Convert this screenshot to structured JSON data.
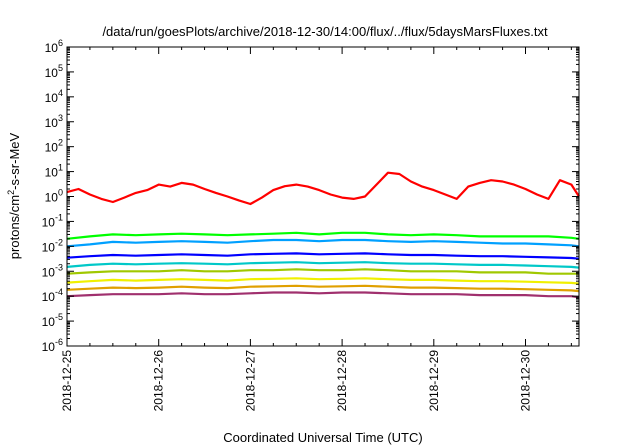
{
  "chart_data": {
    "type": "line",
    "title": "/data/run/goesPlots/archive/2018-12-30/14:00/flux/../flux/5daysMarsFluxes.txt",
    "xlabel": "Coordinated Universal Time (UTC)",
    "ylabel": "protons/cm2-s-sr-MeV",
    "ylabel_parts": {
      "base": "protons/cm",
      "sup": "2",
      "rest": "-s-sr-MeV"
    },
    "yscale": "log",
    "ylim": [
      1e-06,
      1000000.0
    ],
    "y_ticks": [
      {
        "base": "10",
        "exp": "-6"
      },
      {
        "base": "10",
        "exp": "-5"
      },
      {
        "base": "10",
        "exp": "-4"
      },
      {
        "base": "10",
        "exp": "-3"
      },
      {
        "base": "10",
        "exp": "-2"
      },
      {
        "base": "10",
        "exp": "-1"
      },
      {
        "base": "10",
        "exp": "0"
      },
      {
        "base": "10",
        "exp": "1"
      },
      {
        "base": "10",
        "exp": "2"
      },
      {
        "base": "10",
        "exp": "3"
      },
      {
        "base": "10",
        "exp": "4"
      },
      {
        "base": "10",
        "exp": "5"
      },
      {
        "base": "10",
        "exp": "6"
      }
    ],
    "xlim": [
      "2018-12-25T00:00",
      "2018-12-30T14:00"
    ],
    "x_ticks": [
      "2018-12-25",
      "2018-12-26",
      "2018-12-27",
      "2018-12-28",
      "2018-12-29",
      "2018-12-30"
    ],
    "grid": false,
    "legend": "none",
    "series": [
      {
        "color": "#ff0000",
        "x": [
          "2018-12-25T00:00",
          "2018-12-25T03:00",
          "2018-12-25T06:00",
          "2018-12-25T09:00",
          "2018-12-25T12:00",
          "2018-12-25T15:00",
          "2018-12-25T18:00",
          "2018-12-25T21:00",
          "2018-12-26T00:00",
          "2018-12-26T03:00",
          "2018-12-26T06:00",
          "2018-12-26T09:00",
          "2018-12-26T12:00",
          "2018-12-26T15:00",
          "2018-12-26T18:00",
          "2018-12-26T21:00",
          "2018-12-27T00:00",
          "2018-12-27T03:00",
          "2018-12-27T06:00",
          "2018-12-27T09:00",
          "2018-12-27T12:00",
          "2018-12-27T15:00",
          "2018-12-27T18:00",
          "2018-12-27T21:00",
          "2018-12-28T00:00",
          "2018-12-28T03:00",
          "2018-12-28T06:00",
          "2018-12-28T09:00",
          "2018-12-28T12:00",
          "2018-12-28T15:00",
          "2018-12-28T18:00",
          "2018-12-28T21:00",
          "2018-12-29T00:00",
          "2018-12-29T03:00",
          "2018-12-29T06:00",
          "2018-12-29T09:00",
          "2018-12-29T12:00",
          "2018-12-29T15:00",
          "2018-12-29T18:00",
          "2018-12-29T21:00",
          "2018-12-30T00:00",
          "2018-12-30T03:00",
          "2018-12-30T06:00",
          "2018-12-30T09:00",
          "2018-12-30T12:00",
          "2018-12-30T14:00"
        ],
        "y": [
          1.5,
          2.0,
          1.2,
          0.8,
          0.6,
          0.9,
          1.4,
          1.8,
          3.0,
          2.5,
          3.5,
          3.0,
          2.0,
          1.4,
          1.0,
          0.7,
          0.5,
          0.9,
          1.8,
          2.6,
          3.0,
          2.5,
          1.8,
          1.2,
          0.9,
          0.8,
          1.0,
          3.0,
          9.0,
          8.0,
          4.0,
          2.5,
          1.8,
          1.2,
          0.8,
          2.5,
          3.5,
          4.5,
          4.0,
          3.0,
          2.0,
          1.2,
          0.8,
          4.5,
          3.0,
          1.0
        ]
      },
      {
        "color": "#00ff00",
        "x": [
          "2018-12-25T00:00",
          "2018-12-25T06:00",
          "2018-12-25T12:00",
          "2018-12-25T18:00",
          "2018-12-26T00:00",
          "2018-12-26T06:00",
          "2018-12-26T12:00",
          "2018-12-26T18:00",
          "2018-12-27T00:00",
          "2018-12-27T06:00",
          "2018-12-27T12:00",
          "2018-12-27T18:00",
          "2018-12-28T00:00",
          "2018-12-28T06:00",
          "2018-12-28T12:00",
          "2018-12-28T18:00",
          "2018-12-29T00:00",
          "2018-12-29T06:00",
          "2018-12-29T12:00",
          "2018-12-29T18:00",
          "2018-12-30T00:00",
          "2018-12-30T06:00",
          "2018-12-30T12:00",
          "2018-12-30T14:00"
        ],
        "y": [
          0.02,
          0.025,
          0.03,
          0.028,
          0.03,
          0.032,
          0.03,
          0.028,
          0.03,
          0.032,
          0.035,
          0.03,
          0.035,
          0.035,
          0.03,
          0.028,
          0.03,
          0.028,
          0.025,
          0.025,
          0.025,
          0.025,
          0.022,
          0.02
        ]
      },
      {
        "color": "#00a0ff",
        "x": [
          "2018-12-25T00:00",
          "2018-12-25T06:00",
          "2018-12-25T12:00",
          "2018-12-25T18:00",
          "2018-12-26T00:00",
          "2018-12-26T06:00",
          "2018-12-26T12:00",
          "2018-12-26T18:00",
          "2018-12-27T00:00",
          "2018-12-27T06:00",
          "2018-12-27T12:00",
          "2018-12-27T18:00",
          "2018-12-28T00:00",
          "2018-12-28T06:00",
          "2018-12-28T12:00",
          "2018-12-28T18:00",
          "2018-12-29T00:00",
          "2018-12-29T06:00",
          "2018-12-29T12:00",
          "2018-12-29T18:00",
          "2018-12-30T00:00",
          "2018-12-30T06:00",
          "2018-12-30T12:00",
          "2018-12-30T14:00"
        ],
        "y": [
          0.01,
          0.012,
          0.015,
          0.014,
          0.015,
          0.016,
          0.015,
          0.014,
          0.016,
          0.018,
          0.018,
          0.016,
          0.018,
          0.018,
          0.016,
          0.015,
          0.016,
          0.015,
          0.014,
          0.013,
          0.013,
          0.012,
          0.011,
          0.01
        ]
      },
      {
        "color": "#0000ff",
        "x": [
          "2018-12-25T00:00",
          "2018-12-25T06:00",
          "2018-12-25T12:00",
          "2018-12-25T18:00",
          "2018-12-26T00:00",
          "2018-12-26T06:00",
          "2018-12-26T12:00",
          "2018-12-26T18:00",
          "2018-12-27T00:00",
          "2018-12-27T06:00",
          "2018-12-27T12:00",
          "2018-12-27T18:00",
          "2018-12-28T00:00",
          "2018-12-28T06:00",
          "2018-12-28T12:00",
          "2018-12-28T18:00",
          "2018-12-29T00:00",
          "2018-12-29T06:00",
          "2018-12-29T12:00",
          "2018-12-29T18:00",
          "2018-12-30T00:00",
          "2018-12-30T06:00",
          "2018-12-30T12:00",
          "2018-12-30T14:00"
        ],
        "y": [
          0.0035,
          0.004,
          0.0045,
          0.0042,
          0.0045,
          0.0048,
          0.0045,
          0.0042,
          0.0048,
          0.005,
          0.0052,
          0.0048,
          0.005,
          0.0052,
          0.0048,
          0.0045,
          0.0045,
          0.0042,
          0.004,
          0.004,
          0.0038,
          0.0036,
          0.0034,
          0.0032
        ]
      },
      {
        "color": "#00c8c8",
        "x": [
          "2018-12-25T00:00",
          "2018-12-25T06:00",
          "2018-12-25T12:00",
          "2018-12-25T18:00",
          "2018-12-26T00:00",
          "2018-12-26T06:00",
          "2018-12-26T12:00",
          "2018-12-26T18:00",
          "2018-12-27T00:00",
          "2018-12-27T06:00",
          "2018-12-27T12:00",
          "2018-12-27T18:00",
          "2018-12-28T00:00",
          "2018-12-28T06:00",
          "2018-12-28T12:00",
          "2018-12-28T18:00",
          "2018-12-29T00:00",
          "2018-12-29T06:00",
          "2018-12-29T12:00",
          "2018-12-29T18:00",
          "2018-12-30T00:00",
          "2018-12-30T06:00",
          "2018-12-30T12:00",
          "2018-12-30T14:00"
        ],
        "y": [
          0.0015,
          0.0018,
          0.002,
          0.0019,
          0.002,
          0.0021,
          0.002,
          0.0019,
          0.0021,
          0.0022,
          0.0023,
          0.0021,
          0.0022,
          0.0023,
          0.0021,
          0.002,
          0.002,
          0.0019,
          0.0018,
          0.0018,
          0.0017,
          0.0016,
          0.0015,
          0.0014
        ]
      },
      {
        "color": "#a0c800",
        "x": [
          "2018-12-25T00:00",
          "2018-12-25T06:00",
          "2018-12-25T12:00",
          "2018-12-25T18:00",
          "2018-12-26T00:00",
          "2018-12-26T06:00",
          "2018-12-26T12:00",
          "2018-12-26T18:00",
          "2018-12-27T00:00",
          "2018-12-27T06:00",
          "2018-12-27T12:00",
          "2018-12-27T18:00",
          "2018-12-28T00:00",
          "2018-12-28T06:00",
          "2018-12-28T12:00",
          "2018-12-28T18:00",
          "2018-12-29T00:00",
          "2018-12-29T06:00",
          "2018-12-29T12:00",
          "2018-12-29T18:00",
          "2018-12-30T00:00",
          "2018-12-30T06:00",
          "2018-12-30T12:00",
          "2018-12-30T14:00"
        ],
        "y": [
          0.0008,
          0.0009,
          0.001,
          0.001,
          0.001,
          0.0011,
          0.001,
          0.001,
          0.0011,
          0.0011,
          0.0012,
          0.0011,
          0.0011,
          0.0012,
          0.0011,
          0.001,
          0.001,
          0.001,
          0.0009,
          0.0009,
          0.0009,
          0.0008,
          0.0008,
          0.0008
        ]
      },
      {
        "color": "#f0f000",
        "x": [
          "2018-12-25T00:00",
          "2018-12-25T06:00",
          "2018-12-25T12:00",
          "2018-12-25T18:00",
          "2018-12-26T00:00",
          "2018-12-26T06:00",
          "2018-12-26T12:00",
          "2018-12-26T18:00",
          "2018-12-27T00:00",
          "2018-12-27T06:00",
          "2018-12-27T12:00",
          "2018-12-27T18:00",
          "2018-12-28T00:00",
          "2018-12-28T06:00",
          "2018-12-28T12:00",
          "2018-12-28T18:00",
          "2018-12-29T00:00",
          "2018-12-29T06:00",
          "2018-12-29T12:00",
          "2018-12-29T18:00",
          "2018-12-30T00:00",
          "2018-12-30T06:00",
          "2018-12-30T12:00",
          "2018-12-30T14:00"
        ],
        "y": [
          0.00035,
          0.0004,
          0.00045,
          0.00042,
          0.00045,
          0.00048,
          0.00045,
          0.00042,
          0.00048,
          0.0005,
          0.00052,
          0.00048,
          0.0005,
          0.00052,
          0.00048,
          0.00045,
          0.00045,
          0.00042,
          0.0004,
          0.0004,
          0.00038,
          0.00036,
          0.00034,
          0.00032
        ]
      },
      {
        "color": "#e0a000",
        "x": [
          "2018-12-25T00:00",
          "2018-12-25T06:00",
          "2018-12-25T12:00",
          "2018-12-25T18:00",
          "2018-12-26T00:00",
          "2018-12-26T06:00",
          "2018-12-26T12:00",
          "2018-12-26T18:00",
          "2018-12-27T00:00",
          "2018-12-27T06:00",
          "2018-12-27T12:00",
          "2018-12-27T18:00",
          "2018-12-28T00:00",
          "2018-12-28T06:00",
          "2018-12-28T12:00",
          "2018-12-28T18:00",
          "2018-12-29T00:00",
          "2018-12-29T06:00",
          "2018-12-29T12:00",
          "2018-12-29T18:00",
          "2018-12-30T00:00",
          "2018-12-30T06:00",
          "2018-12-30T12:00",
          "2018-12-30T14:00"
        ],
        "y": [
          0.00018,
          0.0002,
          0.00022,
          0.00021,
          0.00022,
          0.00024,
          0.00022,
          0.00021,
          0.00024,
          0.00025,
          0.00026,
          0.00024,
          0.00025,
          0.00026,
          0.00024,
          0.00022,
          0.00022,
          0.00021,
          0.0002,
          0.0002,
          0.00019,
          0.00018,
          0.00017,
          0.00016
        ]
      },
      {
        "color": "#a0306e",
        "x": [
          "2018-12-25T00:00",
          "2018-12-25T06:00",
          "2018-12-25T12:00",
          "2018-12-25T18:00",
          "2018-12-26T00:00",
          "2018-12-26T06:00",
          "2018-12-26T12:00",
          "2018-12-26T18:00",
          "2018-12-27T00:00",
          "2018-12-27T06:00",
          "2018-12-27T12:00",
          "2018-12-27T18:00",
          "2018-12-28T00:00",
          "2018-12-28T06:00",
          "2018-12-28T12:00",
          "2018-12-28T18:00",
          "2018-12-29T00:00",
          "2018-12-29T06:00",
          "2018-12-29T12:00",
          "2018-12-29T18:00",
          "2018-12-30T00:00",
          "2018-12-30T06:00",
          "2018-12-30T12:00",
          "2018-12-30T14:00"
        ],
        "y": [
          0.0001,
          0.00011,
          0.00012,
          0.00012,
          0.00012,
          0.00013,
          0.00012,
          0.00012,
          0.00013,
          0.00014,
          0.00014,
          0.00013,
          0.00014,
          0.00014,
          0.00013,
          0.00012,
          0.00012,
          0.00012,
          0.00011,
          0.00011,
          0.00011,
          0.0001,
          0.0001,
          9e-05
        ]
      }
    ]
  }
}
